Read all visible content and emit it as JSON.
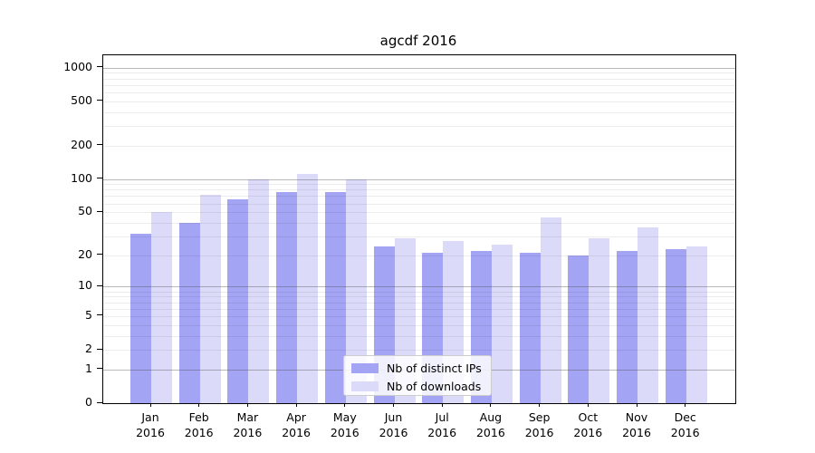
{
  "chart_data": {
    "type": "bar",
    "title": "agcdf 2016",
    "x_year": "2016",
    "categories": [
      "Jan",
      "Feb",
      "Mar",
      "Apr",
      "May",
      "Jun",
      "Jul",
      "Aug",
      "Sep",
      "Oct",
      "Nov",
      "Dec"
    ],
    "series": [
      {
        "name": "Nb of distinct IPs",
        "color": "#a4a4f5",
        "values": [
          32,
          40,
          65,
          76,
          76,
          24,
          21,
          22,
          21,
          20,
          22,
          23
        ]
      },
      {
        "name": "Nb of downloads",
        "color": "#dbdbf9",
        "values": [
          50,
          72,
          100,
          112,
          100,
          29,
          27,
          25,
          45,
          29,
          36,
          24
        ]
      }
    ],
    "y_scale": "log10(1+value)",
    "ylim": [
      0,
      1288
    ],
    "y_ticks": [
      0,
      1,
      2,
      5,
      10,
      20,
      50,
      100,
      200,
      500,
      1000
    ],
    "grid_major": [
      1,
      10,
      100,
      1000
    ],
    "grid_minor": [
      2,
      3,
      4,
      5,
      6,
      7,
      8,
      9,
      20,
      30,
      40,
      50,
      60,
      70,
      80,
      90,
      200,
      300,
      400,
      500,
      600,
      700,
      800,
      900
    ],
    "legend_position": "lower center",
    "grid": "on"
  }
}
